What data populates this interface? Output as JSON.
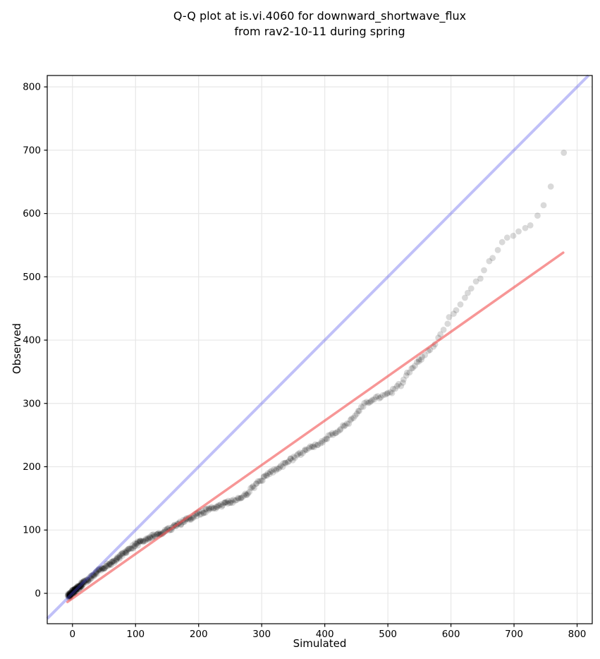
{
  "title": {
    "line1": "Q-Q plot at is.vi.4060 for downward_shortwave_flux",
    "line2": "from rav2-10-11 during spring"
  },
  "chart_data": {
    "type": "scatter",
    "title": "Q-Q plot at is.vi.4060 for downward_shortwave_flux\nfrom rav2-10-11 during spring",
    "xlabel": "Simulated",
    "ylabel": "Observed",
    "xlim": [
      -40,
      824
    ],
    "ylim": [
      -48,
      818
    ],
    "x_ticks": [
      0,
      100,
      200,
      300,
      400,
      500,
      600,
      700,
      800
    ],
    "y_ticks": [
      0,
      100,
      200,
      300,
      400,
      500,
      600,
      700,
      800
    ],
    "grid": true,
    "grid_color": "#e7e7e7",
    "spine_color": "#000000",
    "background": "#ffffff",
    "identity_line": {
      "name": "identity (y = x)",
      "from": [
        -40,
        -40
      ],
      "to": [
        818,
        818
      ],
      "color": "rgba(75,75,235,0.35)",
      "width": 4
    },
    "regression_line": {
      "name": "linear fit",
      "slope": 0.702,
      "intercept": -8,
      "x_range": [
        -8,
        778
      ],
      "color": "rgba(242,80,80,0.6)",
      "width": 3.5
    },
    "scatter": {
      "name": "quantile points (Simulated vs Observed)",
      "color": "rgba(0,0,0,0.15)",
      "marker_radius": 4.4,
      "n_points_approx": 550,
      "quantile_curve": [
        [
          -6,
          -4
        ],
        [
          0,
          2
        ],
        [
          15,
          14
        ],
        [
          30,
          26
        ],
        [
          45,
          38
        ],
        [
          60,
          47
        ],
        [
          80,
          62
        ],
        [
          105,
          80
        ],
        [
          130,
          91
        ],
        [
          155,
          102
        ],
        [
          180,
          115
        ],
        [
          205,
          128
        ],
        [
          230,
          137
        ],
        [
          255,
          146
        ],
        [
          275,
          156
        ],
        [
          300,
          180
        ],
        [
          330,
          200
        ],
        [
          365,
          223
        ],
        [
          400,
          242
        ],
        [
          440,
          272
        ],
        [
          465,
          300
        ],
        [
          485,
          310
        ],
        [
          505,
          317
        ],
        [
          520,
          330
        ],
        [
          540,
          358
        ],
        [
          560,
          380
        ],
        [
          575,
          395
        ],
        [
          590,
          420
        ],
        [
          600,
          437
        ],
        [
          612,
          455
        ],
        [
          630,
          477
        ],
        [
          646,
          498
        ],
        [
          657,
          520
        ],
        [
          668,
          533
        ],
        [
          683,
          557
        ],
        [
          700,
          568
        ],
        [
          718,
          577
        ],
        [
          728,
          585
        ],
        [
          737,
          597
        ],
        [
          745,
          610
        ],
        [
          752,
          625
        ],
        [
          757,
          644
        ],
        [
          762,
          648
        ]
      ],
      "outlier": [
        779,
        696
      ]
    }
  }
}
